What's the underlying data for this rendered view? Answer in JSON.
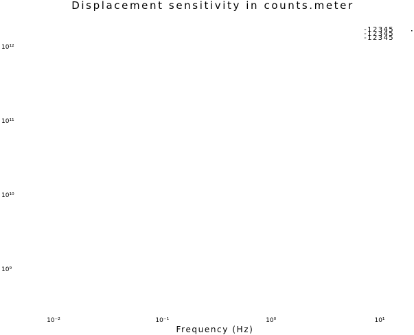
{
  "chart_data": {
    "type": "line",
    "title": "Displacement sensitivity in counts.meter",
    "xlabel": "Frequency (Hz)",
    "ylabel": "",
    "xscale": "log",
    "yscale": "log",
    "xlim": [
      0.01,
      10
    ],
    "ylim": [
      1000000000.0,
      1000000000000.0
    ],
    "x_ticks": [
      {
        "value": 0.01,
        "label": "10⁻²"
      },
      {
        "value": 0.1,
        "label": "10⁻¹"
      },
      {
        "value": 1,
        "label": "10⁰"
      },
      {
        "value": 10,
        "label": "10¹"
      }
    ],
    "y_ticks": [
      {
        "value": 1000000000.0,
        "label": "10⁹"
      },
      {
        "value": 10000000000.0,
        "label": "10¹⁰"
      },
      {
        "value": 100000000000.0,
        "label": "10¹¹"
      },
      {
        "value": 1000000000000.0,
        "label": "10¹²"
      }
    ],
    "grid": false,
    "legend": {
      "placement": "top-right",
      "entries": [
        "-12345",
        "-12345",
        "-12345"
      ]
    },
    "series": []
  }
}
